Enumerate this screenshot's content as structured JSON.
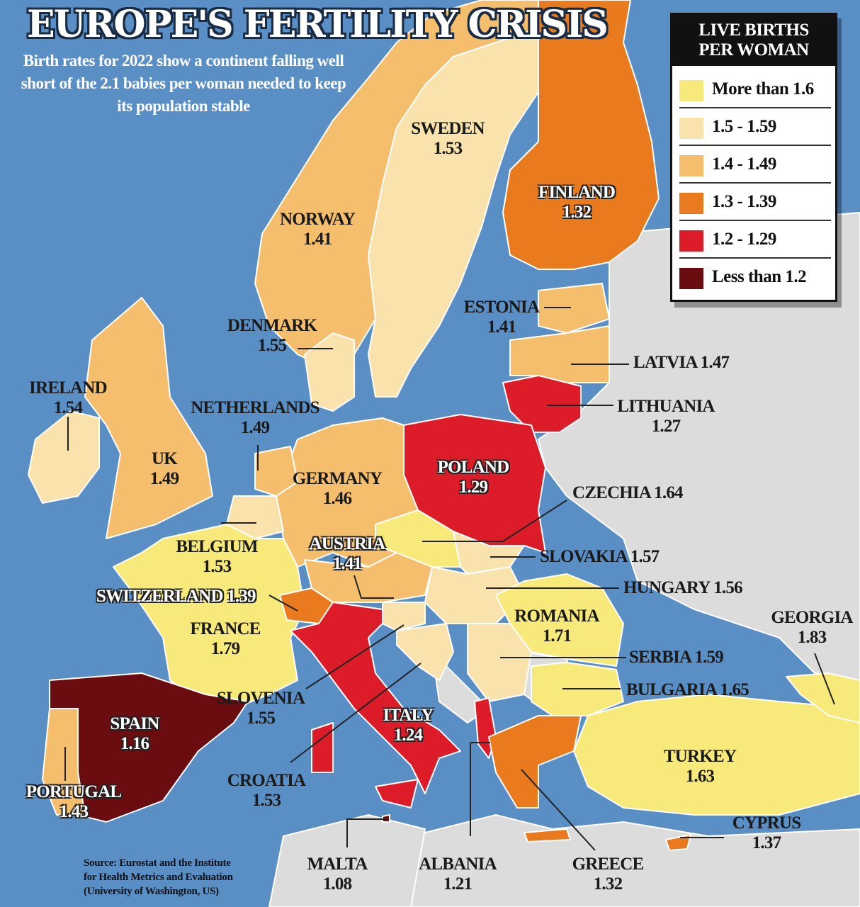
{
  "title": "EUROPE'S FERTILITY CRISIS",
  "subtitle": "Birth rates for 2022 show a continent falling well short of the 2.1 babies per woman needed to keep its population stable",
  "legend": {
    "title_line1": "LIVE BIRTHS",
    "title_line2": "PER WOMAN",
    "items": [
      {
        "label": "More than 1.6",
        "color": "#f7ea7a"
      },
      {
        "label": "1.5 - 1.59",
        "color": "#f9e2ab"
      },
      {
        "label": "1.4 - 1.49",
        "color": "#f5be6c"
      },
      {
        "label": "1.3 - 1.39",
        "color": "#e97a1e"
      },
      {
        "label": "1.2 - 1.29",
        "color": "#dd1c2a"
      },
      {
        "label": "Less than 1.2",
        "color": "#6b0d10"
      }
    ]
  },
  "colors": {
    "sea": "#5a8fc6",
    "non_data_land": "#dcdcdc",
    "border": "#ffffff"
  },
  "countries": [
    {
      "id": "sweden",
      "name": "SWEDEN",
      "value": "1.53",
      "category": 1
    },
    {
      "id": "finland",
      "name": "FINLAND",
      "value": "1.32",
      "category": 3
    },
    {
      "id": "norway",
      "name": "NORWAY",
      "value": "1.41",
      "category": 2
    },
    {
      "id": "estonia",
      "name": "ESTONIA",
      "value": "1.41",
      "category": 2
    },
    {
      "id": "denmark",
      "name": "DENMARK",
      "value": "1.55",
      "category": 1
    },
    {
      "id": "latvia",
      "name": "LATVIA",
      "value": "1.47",
      "category": 2
    },
    {
      "id": "ireland",
      "name": "IRELAND",
      "value": "1.54",
      "category": 1
    },
    {
      "id": "netherlands",
      "name": "NETHERLANDS",
      "value": "1.49",
      "category": 2
    },
    {
      "id": "lithuania",
      "name": "LITHUANIA",
      "value": "1.27",
      "category": 4
    },
    {
      "id": "uk",
      "name": "UK",
      "value": "1.49",
      "category": 2
    },
    {
      "id": "germany",
      "name": "GERMANY",
      "value": "1.46",
      "category": 2
    },
    {
      "id": "poland",
      "name": "POLAND",
      "value": "1.29",
      "category": 4
    },
    {
      "id": "czechia",
      "name": "CZECHIA",
      "value": "1.64",
      "category": 0
    },
    {
      "id": "belgium",
      "name": "BELGIUM",
      "value": "1.53",
      "category": 1
    },
    {
      "id": "austria",
      "name": "AUSTRIA",
      "value": "1.41",
      "category": 2
    },
    {
      "id": "slovakia",
      "name": "SLOVAKIA",
      "value": "1.57",
      "category": 1
    },
    {
      "id": "switzerland",
      "name": "SWITZERLAND",
      "value": "1.39",
      "category": 3
    },
    {
      "id": "hungary",
      "name": "HUNGARY",
      "value": "1.56",
      "category": 1
    },
    {
      "id": "france",
      "name": "FRANCE",
      "value": "1.79",
      "category": 0
    },
    {
      "id": "romania",
      "name": "ROMANIA",
      "value": "1.71",
      "category": 0
    },
    {
      "id": "georgia",
      "name": "GEORGIA",
      "value": "1.83",
      "category": 0
    },
    {
      "id": "serbia",
      "name": "SERBIA",
      "value": "1.59",
      "category": 1
    },
    {
      "id": "slovenia",
      "name": "SLOVENIA",
      "value": "1.55",
      "category": 1
    },
    {
      "id": "bulgaria",
      "name": "BULGARIA",
      "value": "1.65",
      "category": 0
    },
    {
      "id": "spain",
      "name": "SPAIN",
      "value": "1.16",
      "category": 5
    },
    {
      "id": "italy",
      "name": "ITALY",
      "value": "1.24",
      "category": 4
    },
    {
      "id": "turkey",
      "name": "TURKEY",
      "value": "1.63",
      "category": 0
    },
    {
      "id": "croatia",
      "name": "CROATIA",
      "value": "1.53",
      "category": 1
    },
    {
      "id": "portugal",
      "name": "PORTUGAL",
      "value": "1.43",
      "category": 2
    },
    {
      "id": "cyprus",
      "name": "CYPRUS",
      "value": "1.37",
      "category": 3
    },
    {
      "id": "malta",
      "name": "MALTA",
      "value": "1.08",
      "category": 5
    },
    {
      "id": "albania",
      "name": "ALBANIA",
      "value": "1.21",
      "category": 4
    },
    {
      "id": "greece",
      "name": "GREECE",
      "value": "1.32",
      "category": 3
    }
  ],
  "source": {
    "line1": "Source: Eurostat and the Institute",
    "line2": "for Health Metrics and Evaluation",
    "line3": "(University of Washington, US)"
  }
}
